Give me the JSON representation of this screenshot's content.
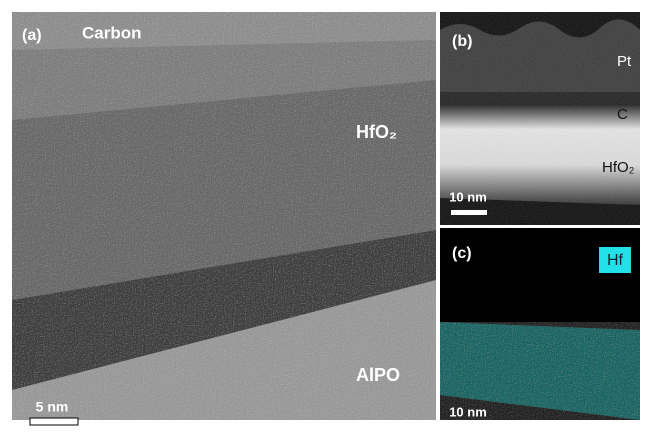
{
  "panels": [
    {
      "label": "(a)",
      "annotations": [
        "Carbon",
        "HfO₂",
        "AlPO"
      ],
      "scale_bar": "5 nm"
    },
    {
      "label": "(b)",
      "annotations": [
        "Pt",
        "C",
        "HfO₂"
      ],
      "scale_bar": "10 nm"
    },
    {
      "label": "(c)",
      "annotations": [
        "Hf"
      ],
      "scale_bar": "10 nm"
    }
  ]
}
